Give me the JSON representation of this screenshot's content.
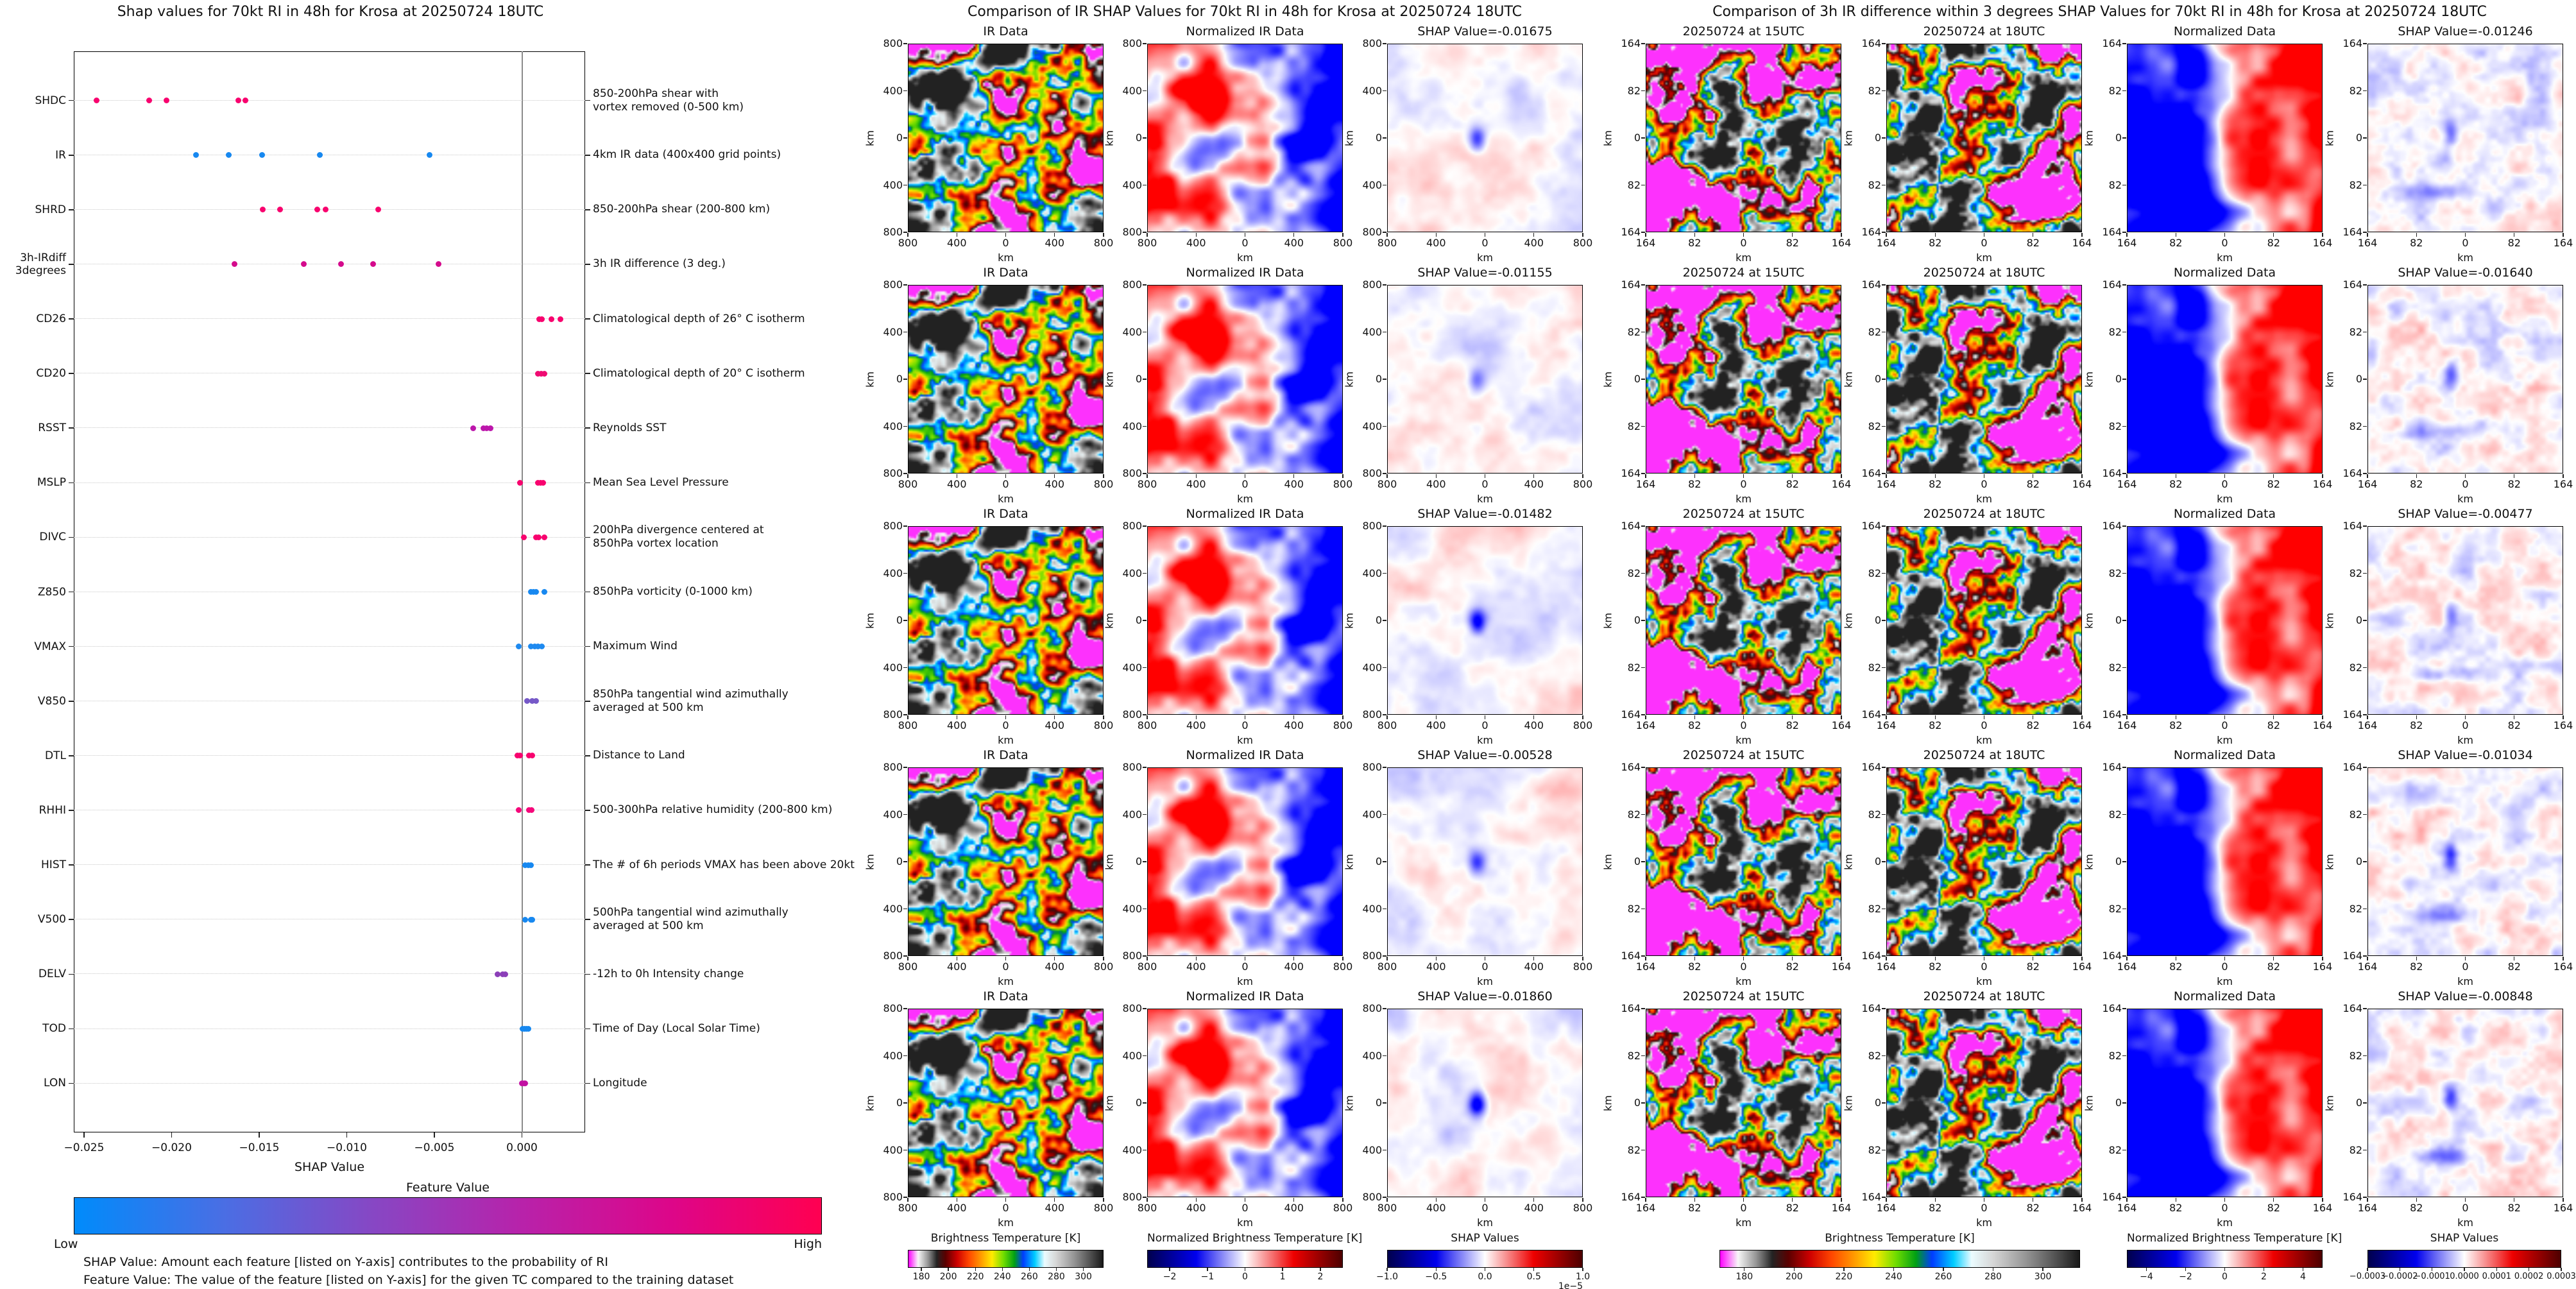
{
  "beeswarm": {
    "title": "Shap values for 70kt RI in 48h for Krosa at 20250724 18UTC",
    "xlabel": "SHAP Value",
    "xlim": [
      -0.0256,
      0.0036
    ],
    "x_ticks": [
      {
        "v": -0.025,
        "label": "−0.025"
      },
      {
        "v": -0.02,
        "label": "−0.020"
      },
      {
        "v": -0.015,
        "label": "−0.015"
      },
      {
        "v": -0.01,
        "label": "−0.010"
      },
      {
        "v": -0.005,
        "label": "−0.005"
      },
      {
        "v": 0.0,
        "label": "0.000"
      }
    ],
    "features": [
      {
        "name": "SHDC",
        "name_lines": [
          "SHDC"
        ],
        "desc_lines": [
          "850-200hPa shear with",
          "vortex removed (0-500 km)"
        ],
        "color": "#f8026e",
        "shap": [
          -0.0243,
          -0.0213,
          -0.0203,
          -0.0162,
          -0.0158
        ]
      },
      {
        "name": "IR",
        "name_lines": [
          "IR"
        ],
        "desc_lines": [
          "4km IR data (400x400 grid points)"
        ],
        "color": "#1788f0",
        "shap": [
          -0.0186,
          -0.01675,
          -0.01482,
          -0.01155,
          -0.00528
        ]
      },
      {
        "name": "SHRD",
        "name_lines": [
          "SHRD"
        ],
        "desc_lines": [
          "850-200hPa shear (200-800 km)"
        ],
        "color": "#f8026e",
        "shap": [
          -0.0148,
          -0.0138,
          -0.0117,
          -0.0112,
          -0.0082
        ]
      },
      {
        "name": "3h-IRdiff 3degrees",
        "name_lines": [
          "3h-IRdiff",
          "3degrees"
        ],
        "desc_lines": [
          "3h IR difference (3 deg.)"
        ],
        "color": "#d40b8c",
        "shap": [
          -0.0164,
          -0.01246,
          -0.01034,
          -0.00848,
          -0.00477
        ]
      },
      {
        "name": "CD26",
        "name_lines": [
          "CD26"
        ],
        "desc_lines": [
          "Climatological depth of 26° C isotherm"
        ],
        "color": "#f8026e",
        "shap": [
          0.001,
          0.00115,
          0.0017,
          0.0022
        ]
      },
      {
        "name": "CD20",
        "name_lines": [
          "CD20"
        ],
        "desc_lines": [
          "Climatological depth of 20° C isotherm"
        ],
        "color": "#ef0b72",
        "shap": [
          0.0009,
          0.0011,
          0.0013
        ]
      },
      {
        "name": "RSST",
        "name_lines": [
          "RSST"
        ],
        "desc_lines": [
          "Reynolds SST"
        ],
        "color": "#bc16ab",
        "shap": [
          -0.0028,
          -0.0022,
          -0.002,
          -0.0018
        ]
      },
      {
        "name": "MSLP",
        "name_lines": [
          "MSLP"
        ],
        "desc_lines": [
          "Mean Sea Level Pressure"
        ],
        "color": "#f8026e",
        "shap": [
          -0.0001,
          0.0009,
          0.00105,
          0.0012
        ]
      },
      {
        "name": "DIVC",
        "name_lines": [
          "DIVC"
        ],
        "desc_lines": [
          "200hPa divergence centered at",
          "850hPa vortex location"
        ],
        "color": "#f8026e",
        "shap": [
          0.0001,
          0.0008,
          0.00095,
          0.0013
        ]
      },
      {
        "name": "Z850",
        "name_lines": [
          "Z850"
        ],
        "desc_lines": [
          "850hPa vorticity (0-1000 km)"
        ],
        "color": "#1788f0",
        "shap": [
          0.0005,
          0.00065,
          0.0008,
          0.0013
        ]
      },
      {
        "name": "VMAX",
        "name_lines": [
          "VMAX"
        ],
        "desc_lines": [
          "Maximum Wind"
        ],
        "color": "#1e8af0",
        "shap": [
          -0.0002,
          0.0005,
          0.00075,
          0.0009,
          0.00115
        ]
      },
      {
        "name": "V850",
        "name_lines": [
          "V850"
        ],
        "desc_lines": [
          "850hPa tangential wind azimuthally",
          "averaged at 500 km"
        ],
        "color": "#7659c8",
        "shap": [
          0.0003,
          0.0006,
          0.0008
        ]
      },
      {
        "name": "DTL",
        "name_lines": [
          "DTL"
        ],
        "desc_lines": [
          "Distance to Land"
        ],
        "color": "#f8026e",
        "shap": [
          -0.00025,
          -0.0001,
          0.0004,
          0.0006
        ]
      },
      {
        "name": "RHHI",
        "name_lines": [
          "RHHI"
        ],
        "desc_lines": [
          "500-300hPa relative humidity (200-800 km)"
        ],
        "color": "#f5077a",
        "shap": [
          -0.0002,
          0.0004,
          0.00055
        ]
      },
      {
        "name": "HIST",
        "name_lines": [
          "HIST"
        ],
        "desc_lines": [
          "The # of 6h periods VMAX has been above 20kt"
        ],
        "color": "#1788f0",
        "shap": [
          0.0002,
          0.00035,
          0.0005
        ]
      },
      {
        "name": "V500",
        "name_lines": [
          "V500"
        ],
        "desc_lines": [
          "500hPa tangential wind azimuthally",
          "averaged at 500 km"
        ],
        "color": "#1788f0",
        "shap": [
          0.0002,
          0.0005,
          0.0006
        ]
      },
      {
        "name": "DELV",
        "name_lines": [
          "DELV"
        ],
        "desc_lines": [
          "-12h to 0h Intensity change"
        ],
        "color": "#8b3fb8",
        "shap": [
          -0.0014,
          -0.0011,
          -0.00095
        ]
      },
      {
        "name": "TOD",
        "name_lines": [
          "TOD"
        ],
        "desc_lines": [
          "Time of Day (Local Solar Time)"
        ],
        "color": "#1788f0",
        "shap": [
          5e-05,
          0.00015,
          0.00025,
          0.00035
        ]
      },
      {
        "name": "LON",
        "name_lines": [
          "LON"
        ],
        "desc_lines": [
          "Longitude"
        ],
        "color": "#c211a2",
        "shap": [
          0.0,
          0.0001,
          0.0002
        ]
      }
    ],
    "colorbar": {
      "title": "Feature Value",
      "low": "Low",
      "high": "High",
      "gradient": [
        "#008bfb",
        "#4a6ee4",
        "#8747c4",
        "#b822aa",
        "#dd0689",
        "#ff0051"
      ]
    },
    "footnotes": [
      "SHAP Value: Amount each feature [listed on Y-axis] contributes to the probability of RI",
      "Feature Value: The value of the feature [listed on Y-axis] for the given TC compared to the training dataset"
    ]
  },
  "middle": {
    "title": "Comparison of IR SHAP Values for 70kt RI in 48h for Krosa at 20250724 18UTC",
    "col_titles": [
      "IR Data",
      "Normalized IR Data"
    ],
    "rows": [
      {
        "shap_label": "SHAP Value=-0.01675",
        "shap_value": -0.01675
      },
      {
        "shap_label": "SHAP Value=-0.01155",
        "shap_value": -0.01155
      },
      {
        "shap_label": "SHAP Value=-0.01482",
        "shap_value": -0.01482
      },
      {
        "shap_label": "SHAP Value=-0.00528",
        "shap_value": -0.00528
      },
      {
        "shap_label": "SHAP Value=-0.01860",
        "shap_value": -0.0186
      }
    ],
    "axis_ticks": [
      "800",
      "400",
      "0",
      "400",
      "800"
    ],
    "axis_unit": "km",
    "colorbars": [
      {
        "title": "Brightness Temperature [K]",
        "ticks": [
          "180",
          "200",
          "220",
          "240",
          "260",
          "280",
          "300"
        ],
        "type": "ir"
      },
      {
        "title": "Normalized Brightness Temperature [K]",
        "ticks": [
          "−2",
          "−1",
          "0",
          "1",
          "2"
        ],
        "type": "seismic"
      },
      {
        "title": "SHAP Values",
        "ticks": [
          "−1.0",
          "−0.5",
          "0.0",
          "0.5",
          "1.0"
        ],
        "exponent": "1e−5",
        "type": "seismic"
      }
    ]
  },
  "right": {
    "title": "Comparison of 3h IR difference within 3 degrees SHAP Values for 70kt RI in 48h for Krosa at 20250724 18UTC",
    "col_titles": [
      "20250724 at 15UTC",
      "20250724 at 18UTC",
      "Normalized Data"
    ],
    "rows": [
      {
        "shap_label": "SHAP Value=-0.01246",
        "shap_value": -0.01246
      },
      {
        "shap_label": "SHAP Value=-0.01640",
        "shap_value": -0.0164
      },
      {
        "shap_label": "SHAP Value=-0.00477",
        "shap_value": -0.00477
      },
      {
        "shap_label": "SHAP Value=-0.01034",
        "shap_value": -0.01034
      },
      {
        "shap_label": "SHAP Value=-0.00848",
        "shap_value": -0.00848
      }
    ],
    "axis_ticks": [
      "164",
      "82",
      "0",
      "82",
      "164"
    ],
    "axis_unit": "km",
    "colorbars": [
      {
        "title": "Brightness Temperature [K]",
        "ticks": [
          "180",
          "200",
          "220",
          "240",
          "260",
          "280",
          "300"
        ],
        "type": "ir"
      },
      {
        "title": "Normalized Brightness Temperature [K]",
        "ticks": [
          "−4",
          "−2",
          "0",
          "2",
          "4"
        ],
        "type": "seismic"
      },
      {
        "title": "SHAP Values",
        "ticks": [
          "−0.0003",
          "−0.0002",
          "−0.0001",
          "0.0000",
          "0.0001",
          "0.0002",
          "0.0003"
        ],
        "type": "seismic"
      }
    ]
  },
  "chart_data": [
    {
      "type": "scatter",
      "subtype": "shap-beeswarm",
      "title": "Shap values for 70kt RI in 48h for Krosa at 20250724 18UTC",
      "xlabel": "SHAP Value",
      "xlim": [
        -0.0256,
        0.0036
      ],
      "x_tick_values": [
        -0.025,
        -0.02,
        -0.015,
        -0.01,
        -0.005,
        0.0
      ],
      "categories": [
        "SHDC",
        "IR",
        "SHRD",
        "3h-IRdiff 3degrees",
        "CD26",
        "CD20",
        "RSST",
        "MSLP",
        "DIVC",
        "Z850",
        "VMAX",
        "V850",
        "DTL",
        "RHHI",
        "HIST",
        "V500",
        "DELV",
        "TOD",
        "LON"
      ],
      "series": [
        {
          "name": "SHDC",
          "feature_value": "high",
          "values": [
            -0.0243,
            -0.0213,
            -0.0203,
            -0.0162,
            -0.0158
          ]
        },
        {
          "name": "IR",
          "feature_value": "low",
          "values": [
            -0.0186,
            -0.01675,
            -0.01482,
            -0.01155,
            -0.00528
          ]
        },
        {
          "name": "SHRD",
          "feature_value": "high",
          "values": [
            -0.0148,
            -0.0138,
            -0.0117,
            -0.0112,
            -0.0082
          ]
        },
        {
          "name": "3h-IRdiff 3degrees",
          "feature_value": "high",
          "values": [
            -0.0164,
            -0.01246,
            -0.01034,
            -0.00848,
            -0.00477
          ]
        },
        {
          "name": "CD26",
          "feature_value": "high",
          "values": [
            0.001,
            0.00115,
            0.0017,
            0.0022
          ]
        },
        {
          "name": "CD20",
          "feature_value": "high",
          "values": [
            0.0009,
            0.0011,
            0.0013
          ]
        },
        {
          "name": "RSST",
          "feature_value": "mid-high",
          "values": [
            -0.0028,
            -0.0022,
            -0.002,
            -0.0018
          ]
        },
        {
          "name": "MSLP",
          "feature_value": "high",
          "values": [
            -0.0001,
            0.0009,
            0.00105,
            0.0012
          ]
        },
        {
          "name": "DIVC",
          "feature_value": "high",
          "values": [
            0.0001,
            0.0008,
            0.00095,
            0.0013
          ]
        },
        {
          "name": "Z850",
          "feature_value": "low",
          "values": [
            0.0005,
            0.00065,
            0.0008,
            0.0013
          ]
        },
        {
          "name": "VMAX",
          "feature_value": "low",
          "values": [
            -0.0002,
            0.0005,
            0.00075,
            0.0009,
            0.00115
          ]
        },
        {
          "name": "V850",
          "feature_value": "mid-low",
          "values": [
            0.0003,
            0.0006,
            0.0008
          ]
        },
        {
          "name": "DTL",
          "feature_value": "high",
          "values": [
            -0.00025,
            -0.0001,
            0.0004,
            0.0006
          ]
        },
        {
          "name": "RHHI",
          "feature_value": "high",
          "values": [
            -0.0002,
            0.0004,
            0.00055
          ]
        },
        {
          "name": "HIST",
          "feature_value": "low",
          "values": [
            0.0002,
            0.00035,
            0.0005
          ]
        },
        {
          "name": "V500",
          "feature_value": "low",
          "values": [
            0.0002,
            0.0005,
            0.0006
          ]
        },
        {
          "name": "DELV",
          "feature_value": "mid-low",
          "values": [
            -0.0014,
            -0.0011,
            -0.00095
          ]
        },
        {
          "name": "TOD",
          "feature_value": "low",
          "values": [
            5e-05,
            0.00015,
            0.00025,
            0.00035
          ]
        },
        {
          "name": "LON",
          "feature_value": "mid-high",
          "values": [
            0.0,
            0.0001,
            0.0002
          ]
        }
      ]
    },
    {
      "type": "heatmap",
      "subtype": "ir-shap-comparison",
      "title": "Comparison of IR SHAP Values for 70kt RI in 48h for Krosa at 20250724 18UTC",
      "columns": [
        "IR Data",
        "Normalized IR Data",
        "SHAP Value"
      ],
      "rows": 5,
      "axis_range_km": [
        -800,
        800
      ],
      "row_shap_values": [
        -0.01675,
        -0.01155,
        -0.01482,
        -0.00528,
        -0.0186
      ],
      "colorbars": {
        "brightness_temperature_K": [
          180,
          200,
          220,
          240,
          260,
          280,
          300
        ],
        "normalized_brightness_temperature_K": [
          -2,
          -1,
          0,
          1,
          2
        ],
        "shap_values_1e-5": [
          -1.0,
          -0.5,
          0.0,
          0.5,
          1.0
        ]
      }
    },
    {
      "type": "heatmap",
      "subtype": "3h-ir-difference-shap-comparison",
      "title": "Comparison of 3h IR difference within 3 degrees SHAP Values for 70kt RI in 48h for Krosa at 20250724 18UTC",
      "columns": [
        "20250724 at 15UTC",
        "20250724 at 18UTC",
        "Normalized Data",
        "SHAP Value"
      ],
      "rows": 5,
      "axis_range_km": [
        -164,
        164
      ],
      "row_shap_values": [
        -0.01246,
        -0.0164,
        -0.00477,
        -0.01034,
        -0.00848
      ],
      "colorbars": {
        "brightness_temperature_K": [
          180,
          200,
          220,
          240,
          260,
          280,
          300
        ],
        "normalized_brightness_temperature_K": [
          -4,
          -2,
          0,
          2,
          4
        ],
        "shap_values": [
          -0.0003,
          -0.0002,
          -0.0001,
          0.0,
          0.0001,
          0.0002,
          0.0003
        ]
      }
    }
  ]
}
